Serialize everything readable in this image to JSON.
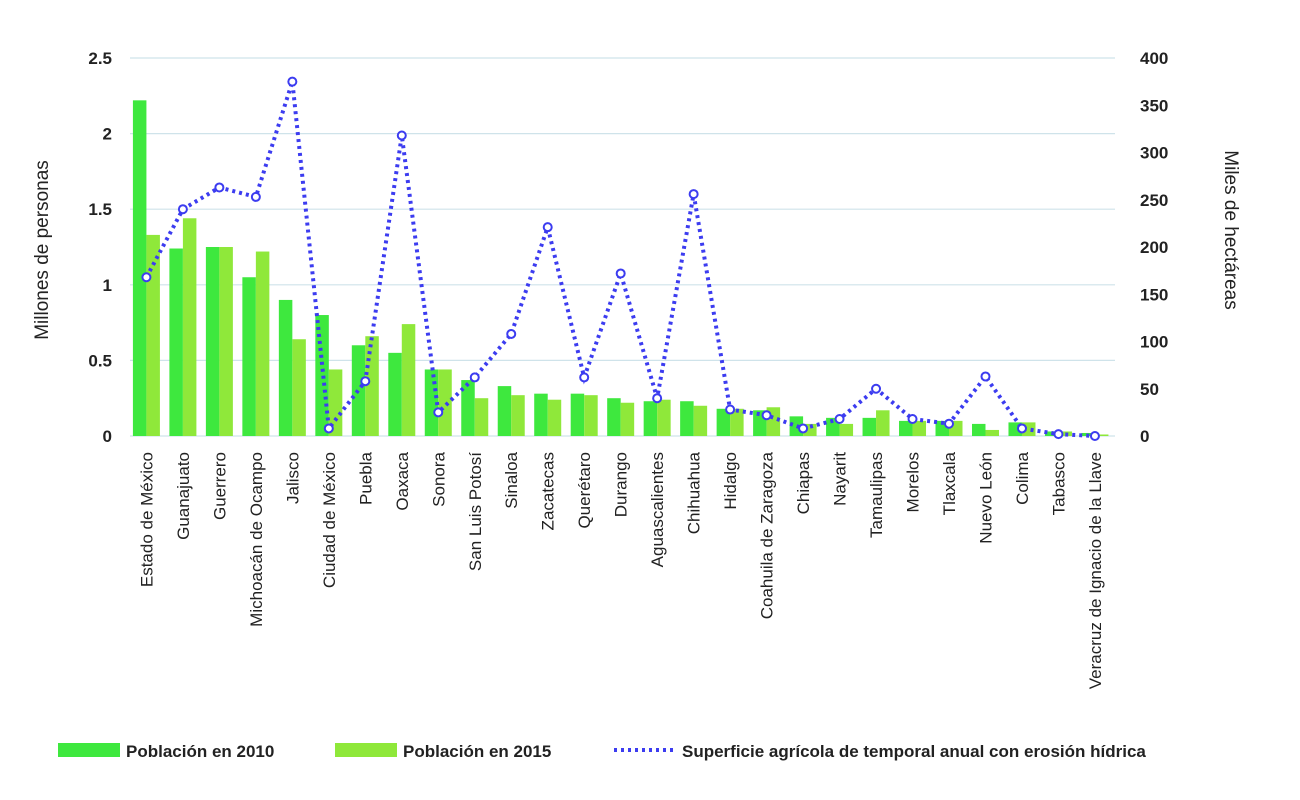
{
  "chart_data": {
    "type": "bar",
    "categories": [
      "Estado de México",
      "Guanajuato",
      "Guerrero",
      "Michoacán de Ocampo",
      "Jalisco",
      "Ciudad de México",
      "Puebla",
      "Oaxaca",
      "Sonora",
      "San Luis Potosí",
      "Sinaloa",
      "Zacatecas",
      "Querétaro",
      "Durango",
      "Aguascalientes",
      "Chihuahua",
      "Hidalgo",
      "Coahuila de Zaragoza",
      "Chiapas",
      "Nayarit",
      "Tamaulipas",
      "Morelos",
      "Tlaxcala",
      "Nuevo León",
      "Colima",
      "Tabasco",
      "Veracruz de Ignacio de la Llave"
    ],
    "series": [
      {
        "name": "Población en 2010",
        "type": "bar",
        "axis": "left",
        "color": "#3ee83e",
        "values": [
          2.22,
          1.24,
          1.25,
          1.05,
          0.9,
          0.8,
          0.6,
          0.55,
          0.44,
          0.37,
          0.33,
          0.28,
          0.28,
          0.25,
          0.23,
          0.23,
          0.18,
          0.17,
          0.13,
          0.12,
          0.12,
          0.1,
          0.1,
          0.08,
          0.09,
          0.03,
          0.02
        ]
      },
      {
        "name": "Población en 2015",
        "type": "bar",
        "axis": "left",
        "color": "#8fe83a",
        "values": [
          1.33,
          1.44,
          1.25,
          1.22,
          0.64,
          0.44,
          0.66,
          0.74,
          0.44,
          0.25,
          0.27,
          0.24,
          0.27,
          0.22,
          0.24,
          0.2,
          0.18,
          0.19,
          0.08,
          0.08,
          0.17,
          0.1,
          0.1,
          0.04,
          0.09,
          0.03,
          0.01
        ]
      },
      {
        "name": "Superficie agrícola de temporal anual con erosión hídrica",
        "type": "line",
        "axis": "right",
        "color": "#3c3cf0",
        "values": [
          168,
          240,
          263,
          253,
          375,
          8,
          58,
          318,
          25,
          62,
          108,
          221,
          62,
          172,
          40,
          256,
          28,
          22,
          8,
          18,
          50,
          18,
          13,
          63,
          8,
          2,
          0
        ]
      }
    ],
    "ylabel": "Millones de personas",
    "y2label": "Miles de hectáreas",
    "ylim": [
      0,
      2.5
    ],
    "y2lim": [
      0,
      400
    ],
    "yticks": [
      "0",
      "0.5",
      "1",
      "1.5",
      "2",
      "2.5"
    ],
    "y2ticks": [
      "0",
      "50",
      "100",
      "150",
      "200",
      "250",
      "300",
      "350",
      "400"
    ],
    "grid": true,
    "legend_position": "bottom"
  },
  "colors": {
    "gridline": "#cfe3ea",
    "bar2010": "#3ee83e",
    "bar2015": "#8fe83a",
    "line": "#3c3cf0"
  }
}
